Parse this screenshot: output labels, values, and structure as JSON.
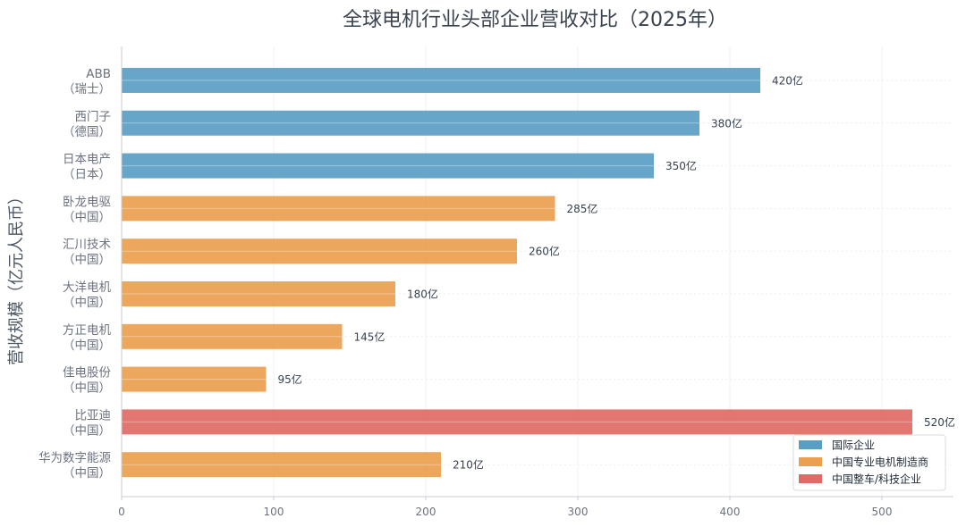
{
  "chart_data": {
    "type": "bar",
    "orientation": "horizontal",
    "title": "全球电机行业头部企业营收对比（2025年）",
    "ylabel": "营收规模（亿元人民币）",
    "xlabel": "",
    "xlim": [
      0,
      545
    ],
    "xticks": [
      0,
      100,
      200,
      300,
      400,
      500
    ],
    "grid": "x-only-light",
    "value_suffix": "亿",
    "bars": [
      {
        "name": "ABB",
        "region": "（瑞士）",
        "value": 420,
        "group": 0
      },
      {
        "name": "西门子",
        "region": "（德国）",
        "value": 380,
        "group": 0
      },
      {
        "name": "日本电产",
        "region": "（日本）",
        "value": 350,
        "group": 0
      },
      {
        "name": "卧龙电驱",
        "region": "（中国）",
        "value": 285,
        "group": 1
      },
      {
        "name": "汇川技术",
        "region": "（中国）",
        "value": 260,
        "group": 1
      },
      {
        "name": "大洋电机",
        "region": "（中国）",
        "value": 180,
        "group": 1
      },
      {
        "name": "方正电机",
        "region": "（中国）",
        "value": 145,
        "group": 1
      },
      {
        "name": "佳电股份",
        "region": "（中国）",
        "value": 95,
        "group": 1
      },
      {
        "name": "比亚迪",
        "region": "（中国）",
        "value": 520,
        "group": 2
      },
      {
        "name": "华为数字能源",
        "region": "（中国）",
        "value": 210,
        "group": 1
      }
    ],
    "legend": {
      "placement": "bottom-right",
      "entries": [
        {
          "label": "国际企业",
          "color": "#5b9ec4"
        },
        {
          "label": "中国专业电机制造商",
          "color": "#eba04f"
        },
        {
          "label": "中国整车/科技企业",
          "color": "#e06a65"
        }
      ]
    }
  }
}
